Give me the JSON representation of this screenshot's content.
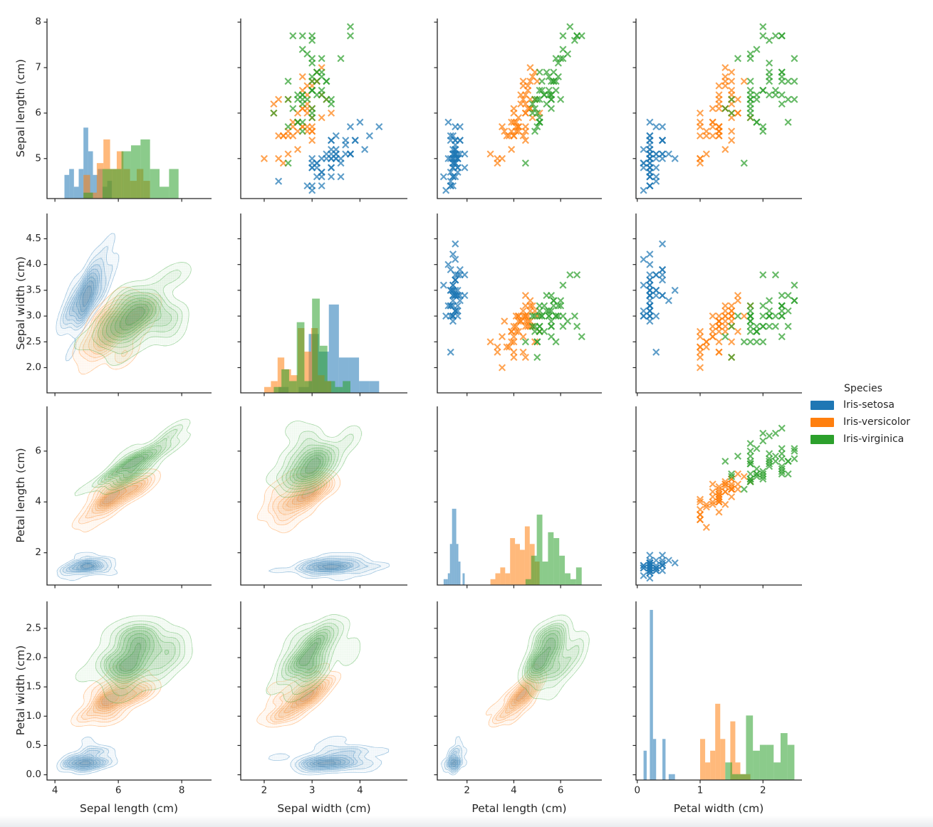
{
  "chart_data": {
    "type": "pairplot",
    "panel_types": {
      "diagonal": "histogram",
      "upper_triangle": "scatter",
      "lower_triangle": "kde-contour"
    },
    "scatter_marker": "x",
    "grid": false,
    "variables": [
      {
        "key": "sepal_length",
        "label": "Sepal length (cm)",
        "xlim": [
          3.75,
          8.94
        ],
        "ylim": [
          4.12,
          8.08
        ],
        "xticks": {
          "values": [
            4,
            6,
            8
          ],
          "labels": [
            "4",
            "6",
            "8"
          ]
        },
        "yticks": {
          "values": [
            5,
            6,
            7,
            8
          ],
          "labels": [
            "5",
            "6",
            "7",
            "8"
          ]
        }
      },
      {
        "key": "sepal_width",
        "label": "Sepal width (cm)",
        "xlim": [
          1.51,
          4.99
        ],
        "ylim": [
          1.51,
          4.99
        ],
        "xticks": {
          "values": [
            2,
            3,
            4
          ],
          "labels": [
            "2",
            "3",
            "4"
          ]
        },
        "yticks": {
          "values": [
            2.0,
            2.5,
            3.0,
            3.5,
            4.0,
            4.5
          ],
          "labels": [
            "2.0",
            "2.5",
            "3.0",
            "3.5",
            "4.0",
            "4.5"
          ]
        }
      },
      {
        "key": "petal_length",
        "label": "Petal length (cm)",
        "xlim": [
          0.73,
          7.76
        ],
        "ylim": [
          0.73,
          7.76
        ],
        "xticks": {
          "values": [
            2,
            4,
            6
          ],
          "labels": [
            "2",
            "4",
            "6"
          ]
        },
        "yticks": {
          "values": [
            2,
            4,
            6
          ],
          "labels": [
            "2",
            "4",
            "6"
          ]
        }
      },
      {
        "key": "petal_width",
        "label": "Petal width (cm)",
        "xlim": [
          -0.02,
          2.62
        ],
        "ylim": [
          -0.09,
          2.96
        ],
        "xticks": {
          "values": [
            0,
            1,
            2
          ],
          "labels": [
            "0",
            "1",
            "2"
          ]
        },
        "yticks": {
          "values": [
            0.0,
            0.5,
            1.0,
            1.5,
            2.0,
            2.5
          ],
          "labels": [
            "0.0",
            "0.5",
            "1.0",
            "1.5",
            "2.0",
            "2.5"
          ]
        }
      }
    ],
    "legend": {
      "title": "Species"
    },
    "series": [
      {
        "name": "Iris-setosa",
        "color": "#1f77b4",
        "data": {
          "sepal_length": [
            5.1,
            4.9,
            4.7,
            4.6,
            5.0,
            5.4,
            4.6,
            5.0,
            4.4,
            4.9,
            5.4,
            4.8,
            4.8,
            4.3,
            5.8,
            5.7,
            5.4,
            5.1,
            5.7,
            5.1,
            5.4,
            5.1,
            4.6,
            5.1,
            4.8,
            5.0,
            5.0,
            5.2,
            5.2,
            4.7,
            4.8,
            5.4,
            5.2,
            5.5,
            4.9,
            5.0,
            5.5,
            4.9,
            4.4,
            5.1,
            5.0,
            4.5,
            4.4,
            5.0,
            5.1,
            4.8,
            5.1,
            4.6,
            5.3,
            5.0
          ],
          "sepal_width": [
            3.5,
            3.0,
            3.2,
            3.1,
            3.6,
            3.9,
            3.4,
            3.4,
            2.9,
            3.1,
            3.7,
            3.4,
            3.0,
            3.0,
            4.0,
            4.4,
            3.9,
            3.5,
            3.8,
            3.8,
            3.4,
            3.7,
            3.6,
            3.3,
            3.4,
            3.0,
            3.4,
            3.5,
            3.4,
            3.2,
            3.1,
            3.4,
            4.1,
            4.2,
            3.1,
            3.2,
            3.5,
            3.6,
            3.0,
            3.4,
            3.5,
            2.3,
            3.2,
            3.5,
            3.8,
            3.0,
            3.8,
            3.2,
            3.7,
            3.3
          ],
          "petal_length": [
            1.4,
            1.4,
            1.3,
            1.5,
            1.4,
            1.7,
            1.4,
            1.5,
            1.4,
            1.5,
            1.5,
            1.6,
            1.4,
            1.1,
            1.2,
            1.5,
            1.3,
            1.4,
            1.7,
            1.5,
            1.7,
            1.5,
            1.0,
            1.7,
            1.9,
            1.6,
            1.6,
            1.5,
            1.4,
            1.6,
            1.6,
            1.5,
            1.5,
            1.4,
            1.5,
            1.2,
            1.3,
            1.4,
            1.3,
            1.5,
            1.3,
            1.3,
            1.3,
            1.6,
            1.9,
            1.4,
            1.6,
            1.4,
            1.5,
            1.4
          ],
          "petal_width": [
            0.2,
            0.2,
            0.2,
            0.2,
            0.2,
            0.4,
            0.3,
            0.2,
            0.2,
            0.1,
            0.2,
            0.2,
            0.1,
            0.1,
            0.2,
            0.4,
            0.4,
            0.3,
            0.3,
            0.3,
            0.2,
            0.4,
            0.2,
            0.5,
            0.2,
            0.2,
            0.4,
            0.2,
            0.2,
            0.2,
            0.2,
            0.4,
            0.1,
            0.2,
            0.2,
            0.2,
            0.2,
            0.1,
            0.2,
            0.2,
            0.3,
            0.3,
            0.2,
            0.6,
            0.4,
            0.3,
            0.2,
            0.2,
            0.2,
            0.2
          ]
        }
      },
      {
        "name": "Iris-versicolor",
        "color": "#ff7f0e",
        "data": {
          "sepal_length": [
            7.0,
            6.4,
            6.9,
            5.5,
            6.5,
            5.7,
            6.3,
            4.9,
            6.6,
            5.2,
            5.0,
            5.9,
            6.0,
            6.1,
            5.6,
            6.7,
            5.6,
            5.8,
            6.2,
            5.6,
            5.9,
            6.1,
            6.3,
            6.1,
            6.4,
            6.6,
            6.8,
            6.7,
            6.0,
            5.7,
            5.5,
            5.5,
            5.8,
            6.0,
            5.4,
            6.0,
            6.7,
            6.3,
            5.6,
            5.5,
            5.5,
            6.1,
            5.8,
            5.0,
            5.6,
            5.7,
            5.7,
            6.2,
            5.1,
            5.7
          ],
          "sepal_width": [
            3.2,
            3.2,
            3.1,
            2.3,
            2.8,
            2.8,
            3.3,
            2.4,
            2.9,
            2.7,
            2.0,
            3.0,
            2.2,
            2.9,
            2.9,
            3.1,
            3.0,
            2.7,
            2.2,
            2.5,
            3.2,
            2.8,
            2.5,
            2.8,
            2.9,
            3.0,
            2.8,
            3.0,
            2.9,
            2.6,
            2.4,
            2.4,
            2.7,
            2.7,
            3.0,
            3.4,
            3.1,
            2.3,
            3.0,
            2.5,
            2.6,
            3.0,
            2.6,
            2.3,
            2.7,
            3.0,
            2.9,
            2.9,
            2.5,
            2.8
          ],
          "petal_length": [
            4.7,
            4.5,
            4.9,
            4.0,
            4.6,
            4.5,
            4.7,
            3.3,
            4.6,
            3.9,
            3.5,
            4.2,
            4.0,
            4.7,
            3.6,
            4.4,
            4.5,
            4.1,
            4.5,
            3.9,
            4.8,
            4.0,
            4.9,
            4.7,
            4.3,
            4.4,
            4.8,
            5.0,
            4.5,
            3.5,
            3.8,
            3.7,
            3.9,
            5.1,
            4.5,
            4.5,
            4.7,
            4.4,
            4.1,
            4.0,
            4.4,
            4.6,
            4.0,
            3.3,
            4.2,
            4.2,
            4.2,
            4.3,
            3.0,
            4.1
          ],
          "petal_width": [
            1.4,
            1.5,
            1.5,
            1.3,
            1.5,
            1.3,
            1.6,
            1.0,
            1.3,
            1.4,
            1.0,
            1.5,
            1.0,
            1.4,
            1.3,
            1.4,
            1.5,
            1.0,
            1.5,
            1.1,
            1.8,
            1.3,
            1.5,
            1.2,
            1.3,
            1.4,
            1.4,
            1.7,
            1.5,
            1.0,
            1.1,
            1.0,
            1.2,
            1.6,
            1.5,
            1.6,
            1.5,
            1.3,
            1.3,
            1.3,
            1.2,
            1.4,
            1.2,
            1.0,
            1.3,
            1.2,
            1.3,
            1.3,
            1.1,
            1.3
          ]
        }
      },
      {
        "name": "Iris-virginica",
        "color": "#2ca02c",
        "data": {
          "sepal_length": [
            6.3,
            5.8,
            7.1,
            6.3,
            6.5,
            7.6,
            4.9,
            7.3,
            6.7,
            7.2,
            6.5,
            6.4,
            6.8,
            5.7,
            5.8,
            6.4,
            6.5,
            7.7,
            7.7,
            6.0,
            6.9,
            5.6,
            7.7,
            6.3,
            6.7,
            7.2,
            6.2,
            6.1,
            6.4,
            7.2,
            7.4,
            7.9,
            6.4,
            6.3,
            6.1,
            7.7,
            6.3,
            6.4,
            6.0,
            6.9,
            6.7,
            6.9,
            5.8,
            6.8,
            6.7,
            6.7,
            6.3,
            6.5,
            6.2,
            5.9
          ],
          "sepal_width": [
            3.3,
            2.7,
            3.0,
            2.9,
            3.0,
            3.0,
            2.5,
            2.9,
            2.5,
            3.6,
            3.2,
            2.7,
            3.0,
            2.5,
            2.8,
            3.2,
            3.0,
            3.8,
            2.6,
            2.2,
            3.2,
            2.8,
            2.8,
            2.7,
            3.3,
            3.2,
            2.8,
            3.0,
            2.8,
            3.0,
            2.8,
            3.8,
            2.8,
            2.8,
            2.6,
            3.0,
            3.4,
            3.1,
            3.0,
            3.1,
            3.1,
            3.1,
            2.7,
            3.2,
            3.3,
            3.0,
            2.5,
            3.0,
            3.4,
            3.0
          ],
          "petal_length": [
            6.0,
            5.1,
            5.9,
            5.6,
            5.8,
            6.6,
            4.5,
            6.3,
            5.8,
            6.1,
            5.1,
            5.3,
            5.5,
            5.0,
            5.1,
            5.3,
            5.5,
            6.7,
            6.9,
            5.0,
            5.7,
            4.9,
            6.7,
            4.9,
            5.7,
            6.0,
            4.8,
            4.9,
            5.6,
            5.8,
            6.1,
            6.4,
            5.6,
            5.1,
            5.6,
            6.1,
            5.6,
            5.5,
            4.8,
            5.4,
            5.6,
            5.1,
            5.1,
            5.9,
            5.7,
            5.2,
            5.0,
            5.2,
            5.4,
            5.1
          ],
          "petal_width": [
            2.5,
            1.9,
            2.1,
            1.8,
            2.2,
            2.1,
            1.7,
            1.8,
            1.8,
            2.5,
            2.0,
            1.9,
            2.1,
            2.0,
            2.4,
            2.3,
            1.8,
            2.2,
            2.3,
            1.5,
            2.3,
            2.0,
            2.0,
            1.8,
            2.1,
            1.8,
            1.8,
            1.8,
            2.1,
            1.6,
            1.9,
            2.0,
            2.2,
            1.5,
            1.4,
            2.3,
            2.4,
            1.8,
            1.8,
            2.1,
            2.4,
            2.3,
            1.9,
            2.3,
            2.5,
            2.3,
            1.9,
            2.0,
            2.3,
            1.8
          ]
        }
      }
    ],
    "hist_bins_per_species": 10,
    "text_color": "#262626"
  }
}
